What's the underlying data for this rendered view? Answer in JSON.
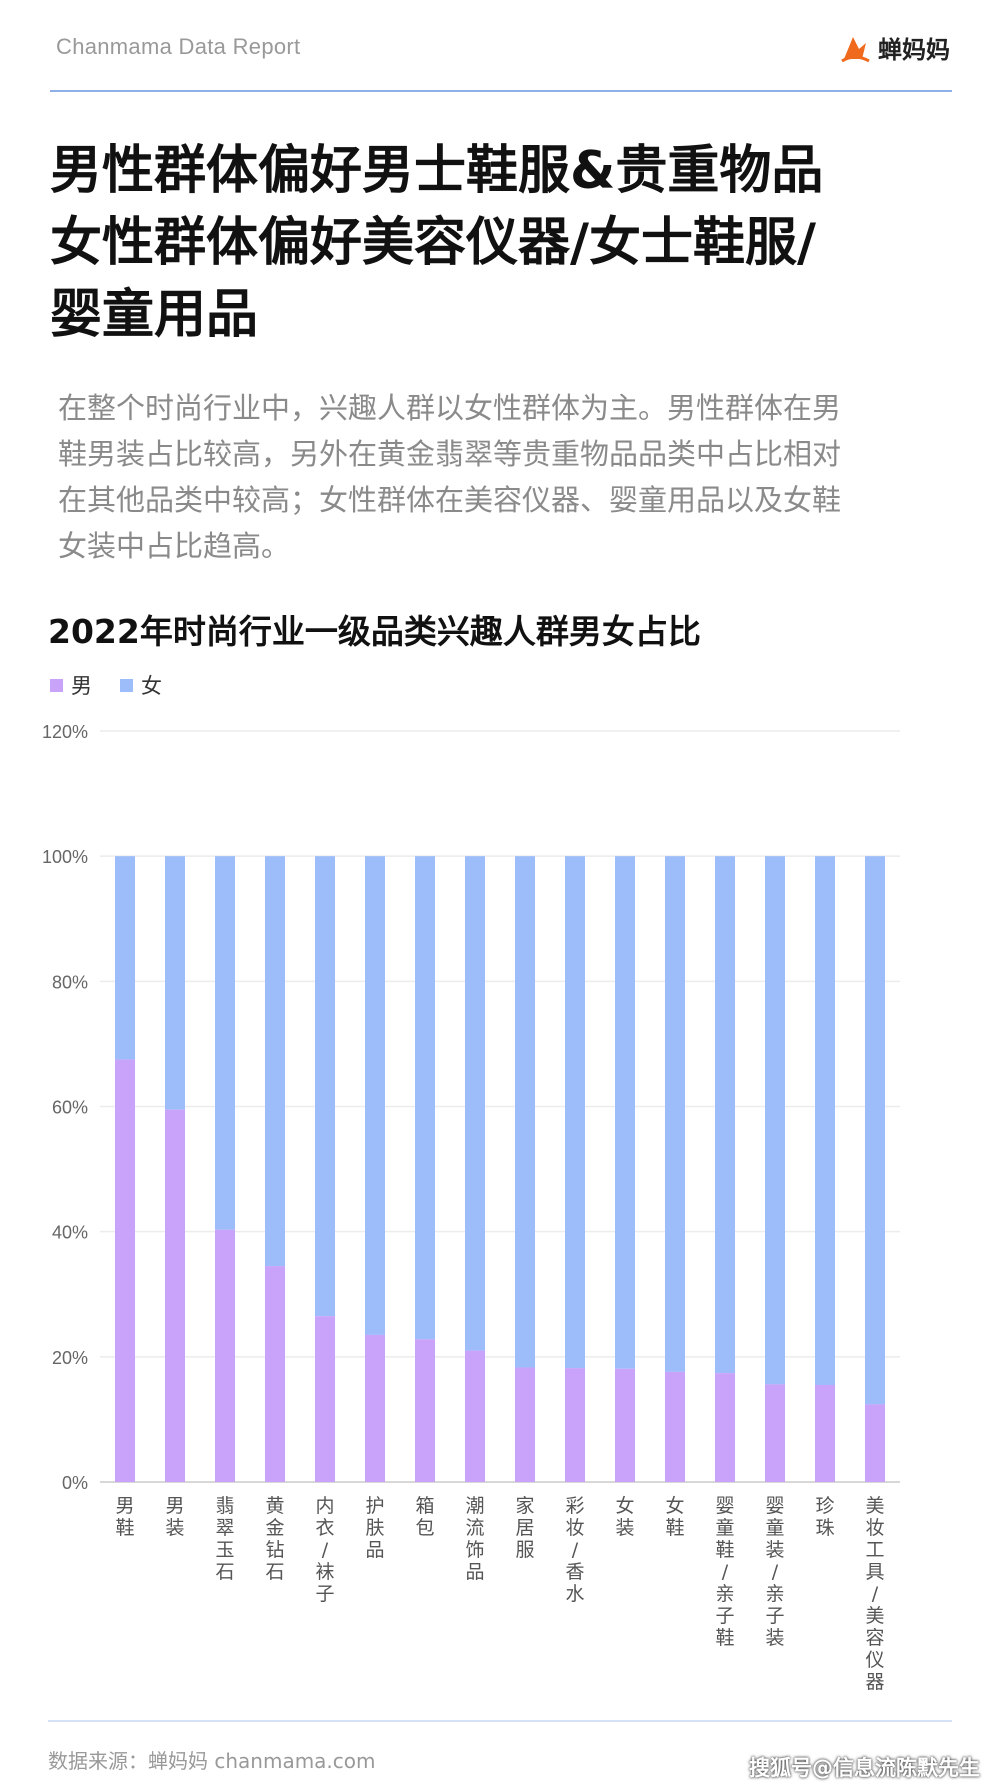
{
  "header": {
    "report_label": "Chanmama Data Report",
    "logo_text": "蝉妈妈"
  },
  "title_lines": [
    "男性群体偏好男士鞋服&贵重物品",
    "女性群体偏好美容仪器/女士鞋服/",
    "婴童用品"
  ],
  "description_lines": [
    "在整个时尚行业中，兴趣人群以女性群体为主。男性群体在男",
    "鞋男装占比较高，另外在黄金翡翠等贵重物品品类中占比相对",
    "在其他品类中较高；女性群体在美容仪器、婴童用品以及女鞋",
    "女装中占比趋高。"
  ],
  "footer": {
    "source": "数据来源：蝉妈妈 chanmama.com",
    "watermark": "搜狐号@信息流陈默先生"
  },
  "colors": {
    "male": "#c9a3fa",
    "female": "#9dbcfa",
    "accent": "#8fb0e6"
  },
  "chart_data": {
    "type": "bar",
    "stacked": true,
    "title": "2022年时尚行业一级品类兴趣人群男女占比",
    "categories": [
      "男鞋",
      "男装",
      "翡翠玉石",
      "黄金钻石",
      "内衣/袜子",
      "护肤品",
      "箱包",
      "潮流饰品",
      "家居服",
      "彩妆/香水",
      "女装",
      "女鞋",
      "婴童鞋/亲子鞋",
      "婴童装/亲子装",
      "珍珠",
      "美妆工具/美容仪器"
    ],
    "series": [
      {
        "name": "男",
        "values": [
          67.5,
          59.5,
          40.3,
          34.5,
          26.5,
          23.5,
          22.8,
          21.0,
          18.3,
          18.2,
          18.1,
          17.6,
          17.4,
          15.6,
          15.5,
          12.4
        ]
      },
      {
        "name": "女",
        "values": [
          32.5,
          40.5,
          59.7,
          65.5,
          73.5,
          76.5,
          77.2,
          79.0,
          81.7,
          81.8,
          81.9,
          82.4,
          82.6,
          84.4,
          84.5,
          87.6
        ]
      }
    ],
    "ylim": [
      0,
      120
    ],
    "yticks": [
      "0%",
      "20%",
      "40%",
      "60%",
      "80%",
      "100%",
      "120%"
    ],
    "grid": true,
    "legend": "top-left"
  }
}
